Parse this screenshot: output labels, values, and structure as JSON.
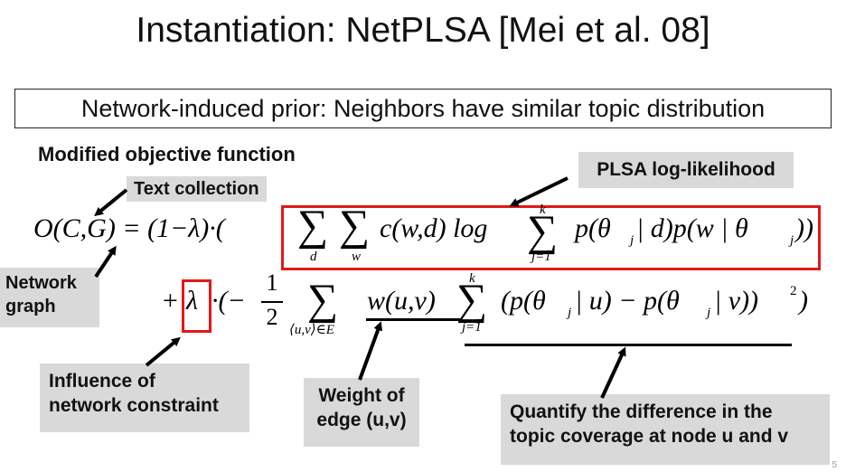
{
  "title": "Instantiation: NetPLSA [Mei et al. 08]",
  "subtitle": "Network-induced prior: Neighbors have similar topic distribution",
  "heading": "Modified objective function",
  "labels": {
    "text_collection": "Text collection",
    "plsa_loglik": "PLSA log-likelihood",
    "network_graph_1": "Network",
    "network_graph_2": "graph",
    "influence_1": "Influence of",
    "influence_2": "network constraint",
    "weight_1": "Weight of",
    "weight_2": "edge (u,v)",
    "quantify_1": "Quantify the difference in the",
    "quantify_2": "topic coverage at node u and v"
  },
  "formula": {
    "line1_lhs": "O(C,G) = (1−λ)·(",
    "line1_rhs": "c(w,d) log",
    "line1_tail": "p(θ",
    "line1_tail2": " | d)p(w | θ",
    "line1_end": "))",
    "sum_sub_d": "d",
    "sum_sub_w": "w",
    "sum_sub_j": "j=1",
    "sum_sup_k": "k",
    "sub_j": "j",
    "line2_plus": "+",
    "lambda": "λ",
    "line2_dot": "·(−",
    "frac_num": "1",
    "frac_den": "2",
    "sum_sub_uv": "⟨u,v⟩∈E",
    "weight": "w(u,v)",
    "diff_a": "(p(θ",
    "diff_b": " | u) − p(θ",
    "diff_c": " | v))",
    "sup_2": "2",
    "close": ")",
    "sigma": "∑"
  },
  "page_number": "5"
}
